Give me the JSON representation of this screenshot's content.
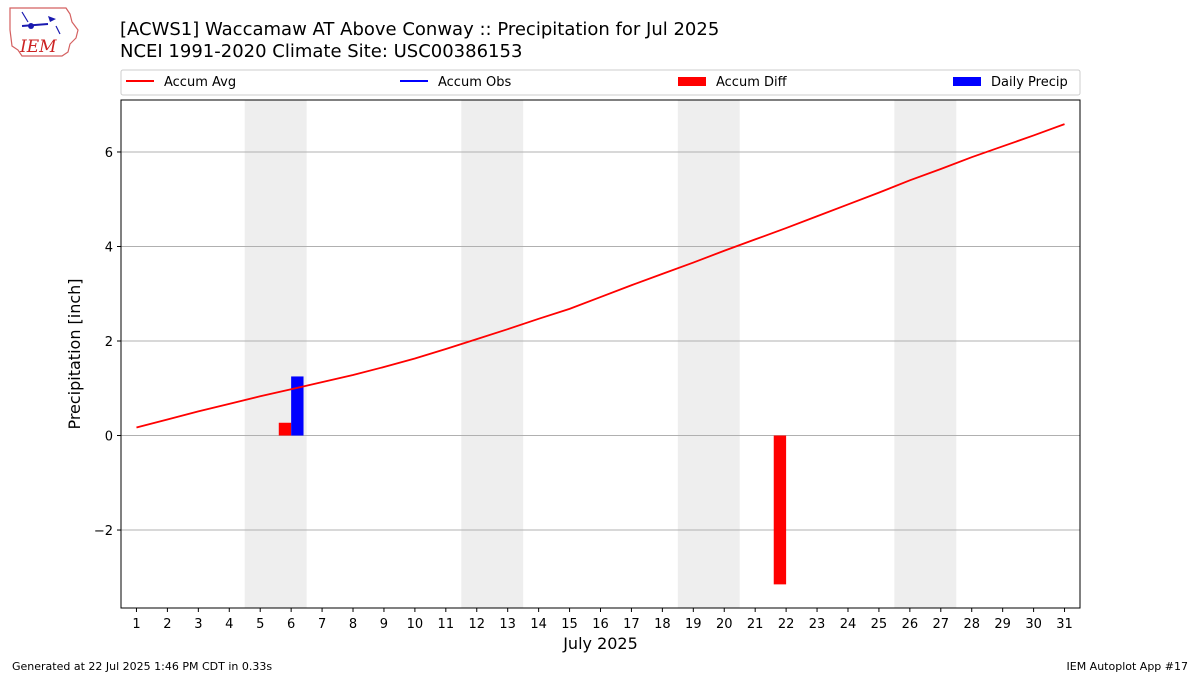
{
  "header": {
    "logo_text": "IEM",
    "title_line1": "[ACWS1] Waccamaw  AT Above Conway :: Precipitation for Jul 2025",
    "title_line2": "NCEI 1991-2020 Climate Site: USC00386153"
  },
  "footer": {
    "left": "Generated at 22 Jul 2025 1:46 PM CDT in 0.33s",
    "right": "IEM Autoplot App #17"
  },
  "colors": {
    "accum_avg": "#ff0000",
    "accum_obs": "#0000ff",
    "accum_diff": "#ff0000",
    "daily_precip": "#0000ff",
    "weekend_shade": "#eeeeee",
    "grid": "#b0b0b0"
  },
  "chart_data": {
    "type": "bar",
    "title": "[ACWS1] Waccamaw  AT Above Conway :: Precipitation for Jul 2025",
    "subtitle": "NCEI 1991-2020 Climate Site: USC00386153",
    "xlabel": "July 2025",
    "ylabel": "Precipitation [inch]",
    "xlim": [
      0.5,
      31.5
    ],
    "ylim": [
      -3.65,
      7.1
    ],
    "x_ticks": [
      1,
      2,
      3,
      4,
      5,
      6,
      7,
      8,
      9,
      10,
      11,
      12,
      13,
      14,
      15,
      16,
      17,
      18,
      19,
      20,
      21,
      22,
      23,
      24,
      25,
      26,
      27,
      28,
      29,
      30,
      31
    ],
    "y_ticks": [
      -2,
      0,
      2,
      4,
      6
    ],
    "y_tick_labels": [
      "−2",
      "0",
      "2",
      "4",
      "6"
    ],
    "grid": "horizontal",
    "legend_position": "top",
    "legend": [
      "Accum Avg",
      "Accum Obs",
      "Accum Diff",
      "Daily Precip"
    ],
    "weekends": [
      [
        5,
        6
      ],
      [
        12,
        13
      ],
      [
        19,
        20
      ],
      [
        26,
        27
      ]
    ],
    "series": [
      {
        "name": "Accum Avg",
        "kind": "line",
        "x": [
          1,
          2,
          3,
          4,
          5,
          6,
          7,
          8,
          9,
          10,
          11,
          12,
          13,
          14,
          15,
          16,
          17,
          18,
          19,
          20,
          21,
          22,
          23,
          24,
          25,
          26,
          27,
          28,
          29,
          30,
          31
        ],
        "values": [
          0.17,
          0.34,
          0.51,
          0.67,
          0.83,
          0.98,
          1.13,
          1.28,
          1.45,
          1.63,
          1.83,
          2.04,
          2.25,
          2.47,
          2.68,
          2.93,
          3.18,
          3.42,
          3.66,
          3.91,
          4.15,
          4.39,
          4.64,
          4.89,
          5.14,
          5.4,
          5.64,
          5.89,
          6.12,
          6.35,
          6.59
        ]
      },
      {
        "name": "Accum Obs",
        "kind": "line",
        "x": [],
        "values": []
      },
      {
        "name": "Accum Diff",
        "kind": "bar",
        "x": [
          6,
          22
        ],
        "values": [
          0.27,
          -3.15
        ]
      },
      {
        "name": "Daily Precip",
        "kind": "bar",
        "x": [
          6
        ],
        "values": [
          1.25
        ]
      }
    ]
  }
}
